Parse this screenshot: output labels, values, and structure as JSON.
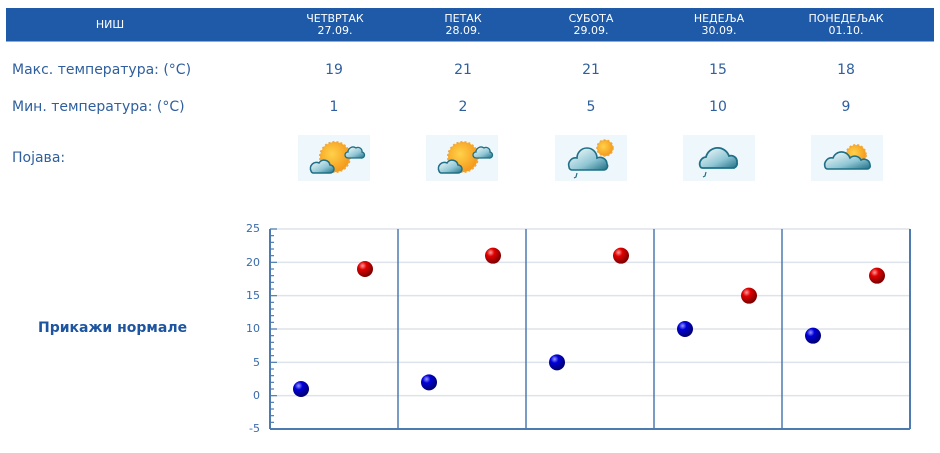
{
  "header": {
    "city": "НИШ",
    "days": [
      {
        "name": "ЧЕТВРТАК",
        "date": "27.09."
      },
      {
        "name": "ПЕТАК",
        "date": "28.09."
      },
      {
        "name": "СУБОТА",
        "date": "29.09."
      },
      {
        "name": "НЕДЕЉА",
        "date": "30.09."
      },
      {
        "name": "ПОНЕДЕЉАК",
        "date": "01.10."
      }
    ]
  },
  "rows": {
    "max_label": "Макс. температура: (°C)",
    "min_label": "Мин. температура: (°C)",
    "phenomenon_label": "Појава:",
    "max": [
      "19",
      "21",
      "21",
      "15",
      "18"
    ],
    "min": [
      "1",
      "2",
      "5",
      "10",
      "9"
    ],
    "icons": [
      "sun-cloud-icon",
      "sun-cloud-icon",
      "partly-cloudy-light-rain-icon",
      "cloud-light-rain-icon",
      "partly-cloudy-icon"
    ]
  },
  "normals_link": "Прикажи нормале",
  "colors": {
    "header_bg": "#1e5aa8",
    "text": "#2f5f9e",
    "max_marker": "#d00000",
    "min_marker": "#0000c8",
    "axis": "#5b86b8"
  },
  "chart_data": {
    "type": "scatter",
    "title": "",
    "xlabel": "",
    "ylabel": "",
    "categories": [
      "27.09.",
      "28.09.",
      "29.09.",
      "30.09.",
      "01.10."
    ],
    "series": [
      {
        "name": "Мин. температура",
        "color": "#0000c8",
        "values": [
          1,
          2,
          5,
          10,
          9
        ]
      },
      {
        "name": "Макс. температура",
        "color": "#d00000",
        "values": [
          19,
          21,
          21,
          15,
          18
        ]
      }
    ],
    "ylim": [
      -5,
      25
    ],
    "yticks": [
      "25",
      "20",
      "15",
      "10",
      "5",
      "0",
      "-5"
    ],
    "grid": true,
    "legend": "none"
  }
}
